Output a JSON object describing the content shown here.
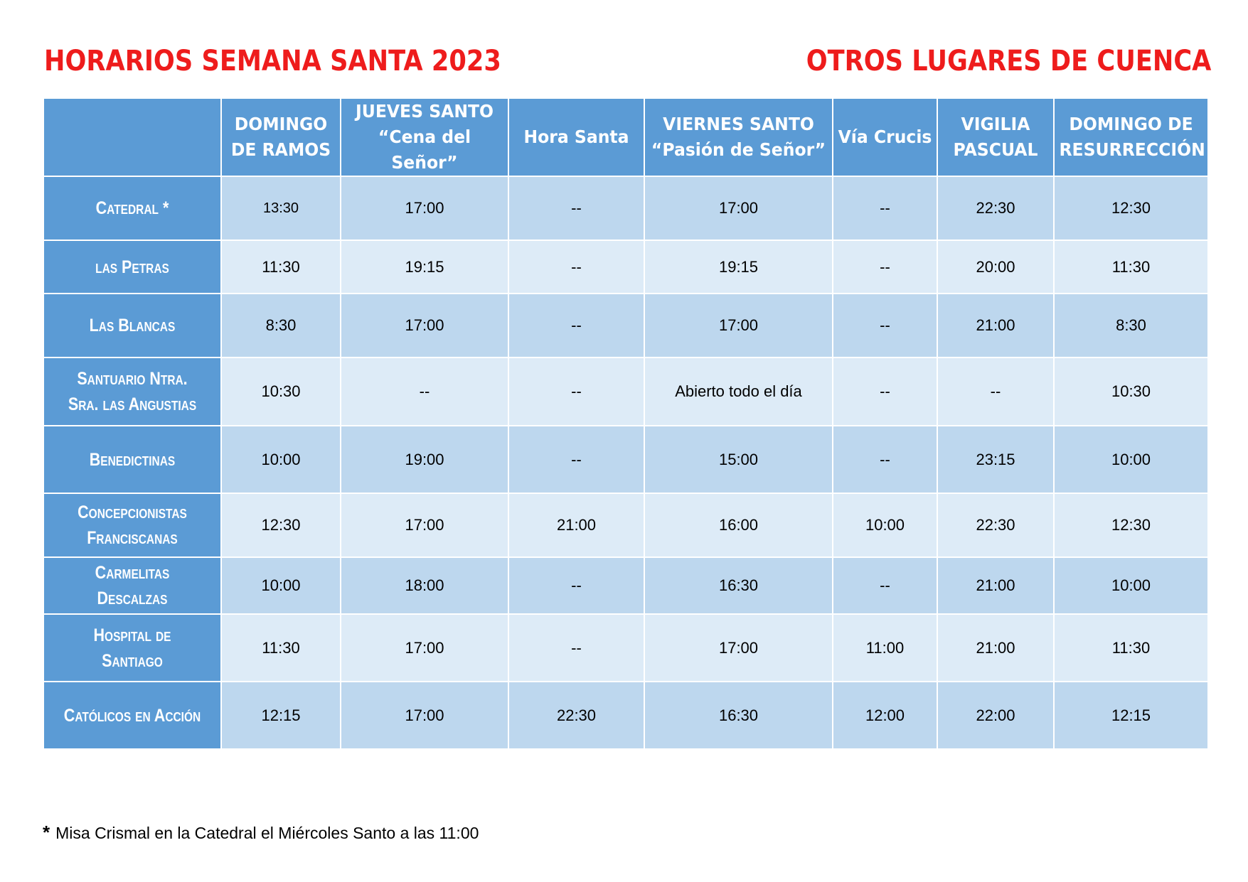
{
  "colors": {
    "title": "#ee1c1c",
    "header_bg": "#5b9bd5",
    "row_dark_bg": "#bdd7ee",
    "row_light_bg": "#ddebf7",
    "header_text": "#ffffff"
  },
  "title_left": "HORARIOS SEMANA SANTA 2023",
  "title_right": "OTROS LUGARES DE CUENCA",
  "columns": [
    "",
    "DOMINGO\nDE RAMOS",
    "JUEVES SANTO\n“Cena del Señor”",
    "Hora Santa",
    "VIERNES SANTO\n“Pasión de Señor”",
    "Vía Crucis",
    "VIGILIA\nPASCUAL",
    "DOMINGO DE\nRESURRECCIÓN"
  ],
  "rows": [
    {
      "place": "Catedral *",
      "times": [
        "13:30",
        "17:00",
        "--",
        "17:00",
        "--",
        "22:30",
        "12:30"
      ]
    },
    {
      "place": "las Petras",
      "times": [
        "11:30",
        "19:15",
        "--",
        "19:15",
        "--",
        "20:00",
        "11:30"
      ]
    },
    {
      "place": "Las Blancas",
      "times": [
        "8:30",
        "17:00",
        "--",
        "17:00",
        "--",
        "21:00",
        "8:30"
      ]
    },
    {
      "place": "Santuario Ntra.\nSra. las Angustias",
      "times": [
        "10:30",
        "--",
        "--",
        "Abierto todo el día",
        "--",
        "--",
        "10:30"
      ]
    },
    {
      "place": "Benedictinas",
      "times": [
        "10:00",
        "19:00",
        "--",
        "15:00",
        "--",
        "23:15",
        "10:00"
      ]
    },
    {
      "place": "Concepcionistas\nFranciscanas",
      "times": [
        "12:30",
        "17:00",
        "21:00",
        "16:00",
        "10:00",
        "22:30",
        "12:30"
      ]
    },
    {
      "place": "Carmelitas\nDescalzas",
      "times": [
        "10:00",
        "18:00",
        "--",
        "16:30",
        "--",
        "21:00",
        "10:00"
      ]
    },
    {
      "place": "Hospital de\nSantiago",
      "times": [
        "11:30",
        "17:00",
        "--",
        "17:00",
        "11:00",
        "21:00",
        "11:30"
      ]
    },
    {
      "place": "Católicos en Acción",
      "times": [
        "12:15",
        "17:00",
        "22:30",
        "16:30",
        "12:00",
        "22:00",
        "12:15"
      ]
    }
  ],
  "footnote": {
    "marker": "*",
    "text": "Misa Crismal en la Catedral el Miércoles Santo a las 11:00"
  }
}
